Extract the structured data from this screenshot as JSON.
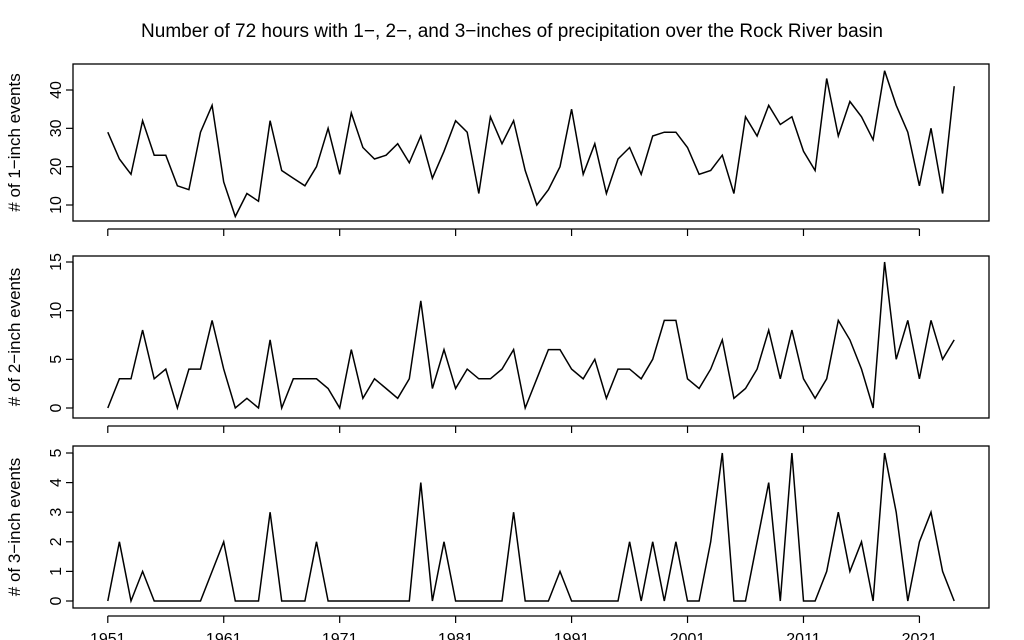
{
  "title": "Number of 72 hours with 1−, 2−, and 3−inches of precipitation over the Rock River basin",
  "chart_data": [
    {
      "type": "line",
      "ylabel": "# of 1−inch events",
      "ylim": [
        7,
        45
      ],
      "yticks": [
        10,
        20,
        30,
        40
      ],
      "x": [
        1951,
        1952,
        1953,
        1954,
        1955,
        1956,
        1957,
        1958,
        1959,
        1960,
        1961,
        1962,
        1963,
        1964,
        1965,
        1966,
        1967,
        1968,
        1969,
        1970,
        1971,
        1972,
        1973,
        1974,
        1975,
        1976,
        1977,
        1978,
        1979,
        1980,
        1981,
        1982,
        1983,
        1984,
        1985,
        1986,
        1987,
        1988,
        1989,
        1990,
        1991,
        1992,
        1993,
        1994,
        1995,
        1996,
        1997,
        1998,
        1999,
        2000,
        2001,
        2002,
        2003,
        2004,
        2005,
        2006,
        2007,
        2008,
        2009,
        2010,
        2011,
        2012,
        2013,
        2014,
        2015,
        2016,
        2017,
        2018,
        2019,
        2020,
        2021,
        2022,
        2023,
        2024
      ],
      "values": [
        29,
        22,
        18,
        32,
        23,
        23,
        15,
        14,
        29,
        36,
        16,
        7,
        13,
        11,
        32,
        19,
        17,
        15,
        20,
        30,
        18,
        34,
        25,
        22,
        23,
        26,
        21,
        28,
        17,
        24,
        32,
        29,
        13,
        33,
        26,
        32,
        19,
        10,
        14,
        20,
        35,
        18,
        26,
        13,
        22,
        25,
        18,
        28,
        29,
        29,
        25,
        18,
        19,
        23,
        13,
        33,
        28,
        36,
        31,
        33,
        24,
        19,
        43,
        28,
        37,
        33,
        27,
        45,
        36,
        29,
        15,
        30,
        13,
        41
      ]
    },
    {
      "type": "line",
      "ylabel": "# of 2−inch events",
      "ylim": [
        0,
        15
      ],
      "yticks": [
        0,
        5,
        10,
        15
      ],
      "x": [
        1951,
        1952,
        1953,
        1954,
        1955,
        1956,
        1957,
        1958,
        1959,
        1960,
        1961,
        1962,
        1963,
        1964,
        1965,
        1966,
        1967,
        1968,
        1969,
        1970,
        1971,
        1972,
        1973,
        1974,
        1975,
        1976,
        1977,
        1978,
        1979,
        1980,
        1981,
        1982,
        1983,
        1984,
        1985,
        1986,
        1987,
        1988,
        1989,
        1990,
        1991,
        1992,
        1993,
        1994,
        1995,
        1996,
        1997,
        1998,
        1999,
        2000,
        2001,
        2002,
        2003,
        2004,
        2005,
        2006,
        2007,
        2008,
        2009,
        2010,
        2011,
        2012,
        2013,
        2014,
        2015,
        2016,
        2017,
        2018,
        2019,
        2020,
        2021,
        2022,
        2023,
        2024
      ],
      "values": [
        0,
        3,
        3,
        8,
        3,
        4,
        0,
        4,
        4,
        9,
        4,
        0,
        1,
        0,
        7,
        0,
        3,
        3,
        3,
        2,
        0,
        6,
        1,
        3,
        2,
        1,
        3,
        11,
        2,
        6,
        2,
        4,
        3,
        3,
        4,
        6,
        0,
        3,
        6,
        6,
        4,
        3,
        5,
        1,
        4,
        4,
        3,
        5,
        9,
        9,
        3,
        2,
        4,
        7,
        1,
        2,
        4,
        8,
        3,
        8,
        3,
        1,
        3,
        9,
        7,
        4,
        0,
        15,
        5,
        9,
        3,
        9,
        5,
        7
      ]
    },
    {
      "type": "line",
      "ylabel": "# of 3−inch events",
      "ylim": [
        0,
        5
      ],
      "yticks": [
        0,
        1,
        2,
        3,
        4,
        5
      ],
      "x": [
        1951,
        1952,
        1953,
        1954,
        1955,
        1956,
        1957,
        1958,
        1959,
        1960,
        1961,
        1962,
        1963,
        1964,
        1965,
        1966,
        1967,
        1968,
        1969,
        1970,
        1971,
        1972,
        1973,
        1974,
        1975,
        1976,
        1977,
        1978,
        1979,
        1980,
        1981,
        1982,
        1983,
        1984,
        1985,
        1986,
        1987,
        1988,
        1989,
        1990,
        1991,
        1992,
        1993,
        1994,
        1995,
        1996,
        1997,
        1998,
        1999,
        2000,
        2001,
        2002,
        2003,
        2004,
        2005,
        2006,
        2007,
        2008,
        2009,
        2010,
        2011,
        2012,
        2013,
        2014,
        2015,
        2016,
        2017,
        2018,
        2019,
        2020,
        2021,
        2022,
        2023,
        2024
      ],
      "values": [
        0,
        2,
        0,
        1,
        0,
        0,
        0,
        0,
        0,
        1,
        2,
        0,
        0,
        0,
        3,
        0,
        0,
        0,
        2,
        0,
        0,
        0,
        0,
        0,
        0,
        0,
        0,
        4,
        0,
        2,
        0,
        0,
        0,
        0,
        0,
        3,
        0,
        0,
        0,
        1,
        0,
        0,
        0,
        0,
        0,
        2,
        0,
        2,
        0,
        2,
        0,
        0,
        2,
        5,
        0,
        0,
        2,
        4,
        0,
        5,
        0,
        0,
        1,
        3,
        1,
        2,
        0,
        5,
        3,
        0,
        2,
        3,
        1,
        0
      ]
    }
  ],
  "xticks": [
    1951,
    1961,
    1971,
    1981,
    1991,
    2001,
    2011,
    2021
  ],
  "xlim": [
    1948,
    2027
  ]
}
